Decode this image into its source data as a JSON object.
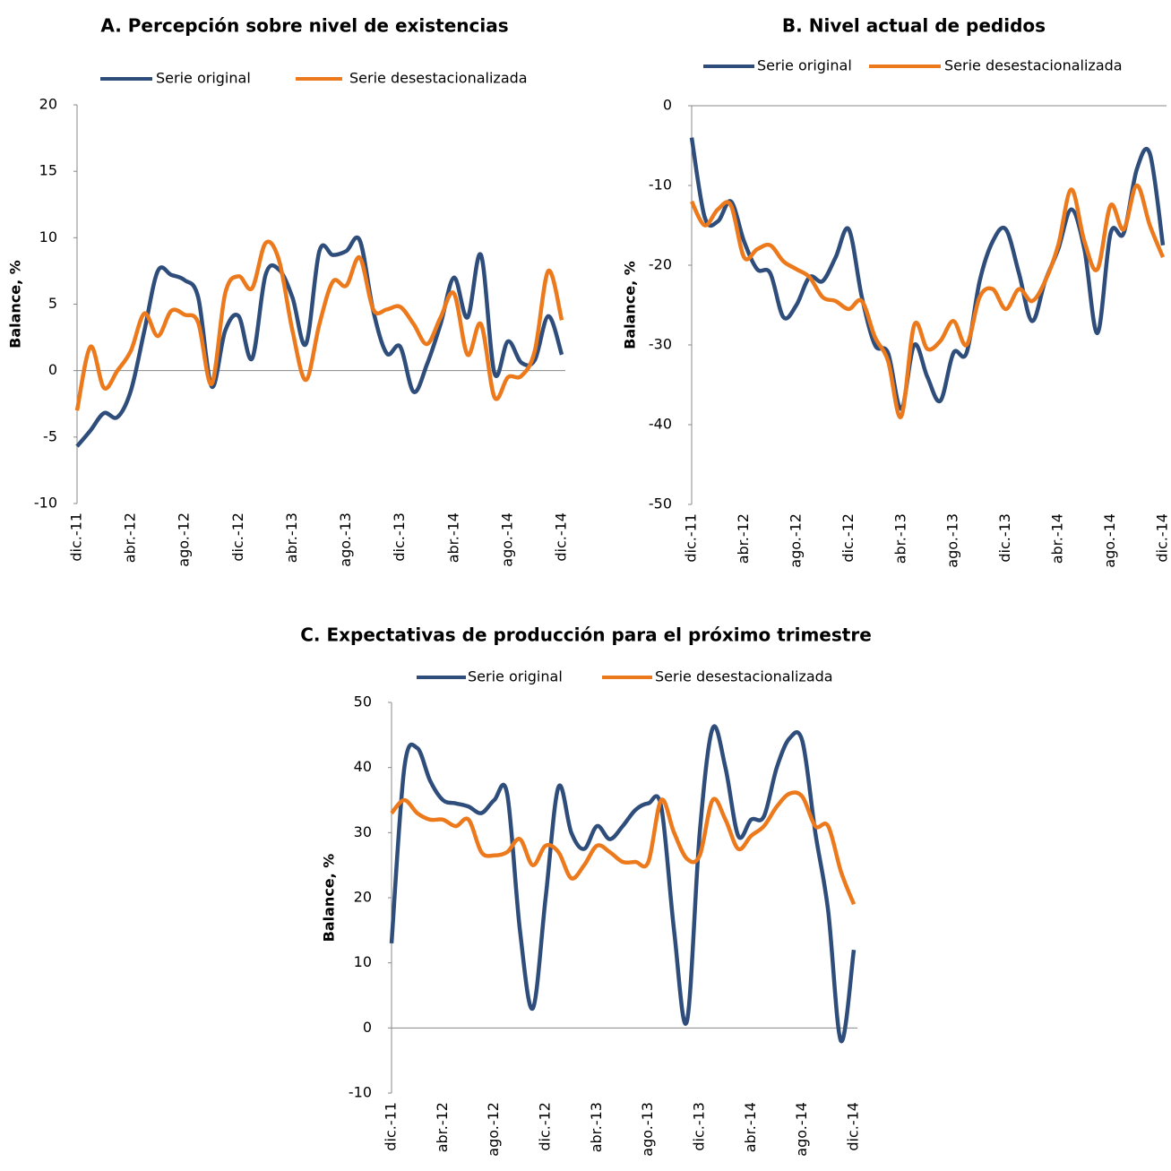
{
  "chart_data": [
    {
      "type": "line",
      "title": "A.  Percepción sobre nivel de existencias",
      "y_label": "Balance, %",
      "categories": [
        "dic.-11",
        null,
        null,
        null,
        "abr.-12",
        null,
        null,
        null,
        "ago.-12",
        null,
        null,
        null,
        "dic.-12",
        null,
        null,
        null,
        "abr.-13",
        null,
        null,
        null,
        "ago.-13",
        null,
        null,
        null,
        "dic.-13",
        null,
        null,
        null,
        "abr.-14",
        null,
        null,
        null,
        "ago.-14",
        null,
        null,
        null,
        "dic.-14"
      ],
      "series": [
        {
          "name": "Serie original",
          "color": "#2e4d7b",
          "values": [
            -5.7,
            -4.5,
            -3.2,
            -3.5,
            -1.5,
            3,
            7.5,
            7.2,
            6.8,
            5.5,
            -1.2,
            3,
            4.1,
            0.9,
            7.2,
            7.6,
            5.5,
            2,
            9,
            8.7,
            9,
            9.8,
            4.5,
            1.3,
            1.8,
            -1.6,
            0.5,
            3.5,
            7,
            4,
            8.7,
            -0.2,
            2.2,
            0.6,
            0.8,
            4.1,
            1.2
          ]
        },
        {
          "name": "Serie desestacionalizada",
          "color": "#ec7a1c",
          "values": [
            -3,
            1.8,
            -1.3,
            0,
            1.5,
            4.3,
            2.6,
            4.5,
            4.2,
            3.6,
            -1,
            5.8,
            7.1,
            6.2,
            9.6,
            8.3,
            3,
            -0.7,
            3.5,
            6.7,
            6.4,
            8.5,
            4.6,
            4.6,
            4.8,
            3.5,
            2,
            4,
            5.8,
            1.2,
            3.5,
            -2,
            -0.5,
            -0.4,
            1.5,
            7.5,
            3.8
          ]
        }
      ],
      "ylim": [
        -10,
        20
      ],
      "yticks": [
        -10,
        -5,
        0,
        5,
        10,
        15,
        20
      ]
    },
    {
      "type": "line",
      "title": "B. Nivel actual de pedidos",
      "y_label": "Balance, %",
      "categories": [
        "dic.-11",
        null,
        null,
        null,
        "abr.-12",
        null,
        null,
        null,
        "ago.-12",
        null,
        null,
        null,
        "dic.-12",
        null,
        null,
        null,
        "abr.-13",
        null,
        null,
        null,
        "ago.-13",
        null,
        null,
        null,
        "dic.-13",
        null,
        null,
        null,
        "abr.-14",
        null,
        null,
        null,
        "ago.-14",
        null,
        null,
        null,
        "dic.-14"
      ],
      "series": [
        {
          "name": "Serie original",
          "color": "#2e4d7b",
          "values": [
            -4,
            -14,
            -14.5,
            -12,
            -17,
            -20.5,
            -21,
            -26.5,
            -25,
            -21.5,
            -22,
            -19,
            -15.5,
            -24,
            -30,
            -31,
            -38,
            -30,
            -34,
            -37,
            -31,
            -31,
            -22,
            -17,
            -15.5,
            -21,
            -27,
            -22,
            -18,
            -13,
            -18,
            -28.5,
            -16,
            -16,
            -8,
            -6,
            -17.5
          ]
        },
        {
          "name": "Serie desestacionalizada",
          "color": "#ec7a1c",
          "values": [
            -12,
            -15,
            -13,
            -12.5,
            -19,
            -18,
            -17.5,
            -19.5,
            -20.5,
            -21.5,
            -24,
            -24.5,
            -25.5,
            -24.5,
            -29,
            -32,
            -39,
            -27.5,
            -30.5,
            -29.5,
            -27,
            -30,
            -24,
            -23,
            -25.5,
            -23,
            -24.5,
            -22,
            -17.5,
            -10.5,
            -17,
            -20.5,
            -12.5,
            -15.5,
            -10,
            -15,
            -19
          ]
        }
      ],
      "ylim": [
        -50,
        0
      ],
      "yticks": [
        -50,
        -40,
        -30,
        -20,
        -10,
        0
      ]
    },
    {
      "type": "line",
      "title": "C.   Expectativas de producción para el próximo trimestre",
      "y_label": "Balance, %",
      "categories": [
        "dic.-11",
        null,
        null,
        null,
        "abr.-12",
        null,
        null,
        null,
        "ago.-12",
        null,
        null,
        null,
        "dic.-12",
        null,
        null,
        null,
        "abr.-13",
        null,
        null,
        null,
        "ago.-13",
        null,
        null,
        null,
        "dic.-13",
        null,
        null,
        null,
        "abr.-14",
        null,
        null,
        null,
        "ago.-14",
        null,
        null,
        null,
        "dic.-14"
      ],
      "series": [
        {
          "name": "Serie original",
          "color": "#2e4d7b",
          "values": [
            13,
            40,
            43,
            38,
            35,
            34.5,
            34,
            33,
            35,
            36,
            15,
            3,
            20,
            37,
            30,
            27.5,
            31,
            29,
            31,
            33.5,
            34.5,
            34,
            15,
            1,
            30,
            46,
            40,
            29.5,
            32,
            32.5,
            40,
            44.5,
            44,
            30,
            18,
            -2,
            12
          ]
        },
        {
          "name": "Serie desestacionalizada",
          "color": "#ec7a1c",
          "values": [
            33,
            35,
            33,
            32,
            32,
            31,
            32,
            27,
            26.5,
            27,
            29,
            25,
            28,
            27,
            23,
            25,
            28,
            27,
            25.5,
            25.5,
            25.5,
            35,
            30,
            26,
            26.5,
            35,
            32,
            27.5,
            29.5,
            31,
            34,
            36,
            35.5,
            31,
            31,
            24,
            19
          ]
        }
      ],
      "ylim": [
        -10,
        50
      ],
      "yticks": [
        -10,
        0,
        10,
        20,
        30,
        40,
        50
      ]
    }
  ]
}
